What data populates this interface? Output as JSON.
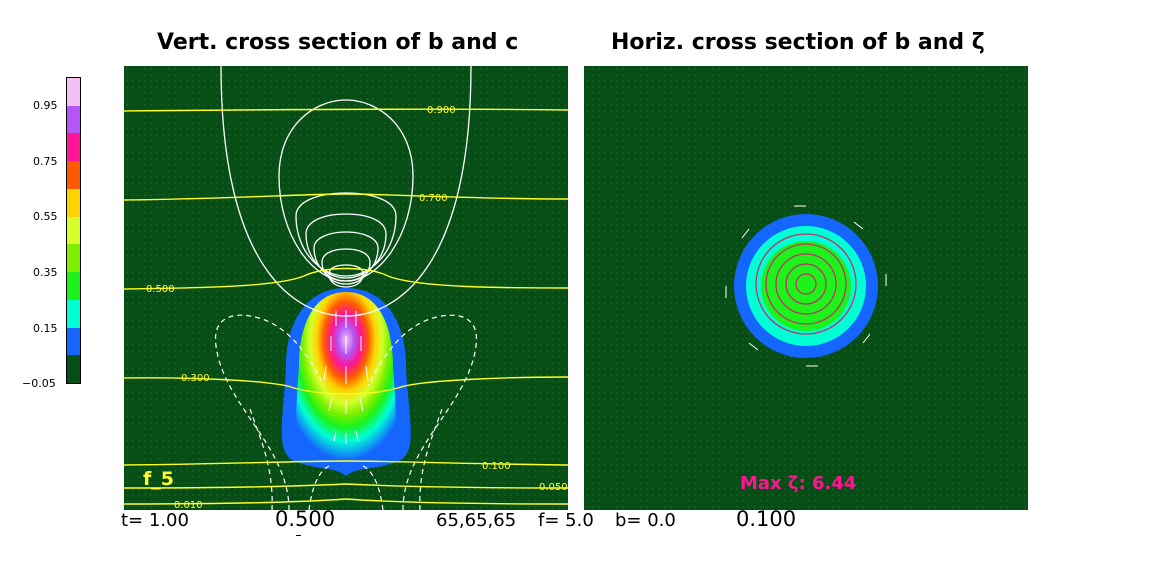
{
  "titles": {
    "left": "Vert. cross section of b and c",
    "right": "Horiz. cross section of b and ζ"
  },
  "colorbar": {
    "ticks": [
      "0.95",
      "0.75",
      "0.55",
      "0.35",
      "0.15",
      "−0.05"
    ],
    "colors": [
      "#f4c0f4",
      "#b455f5",
      "#ff1493",
      "#ff5a00",
      "#ffd300",
      "#d6ff2b",
      "#7ef000",
      "#1df21a",
      "#00ffd5",
      "#1466ff",
      "#074d16"
    ]
  },
  "left_panel": {
    "label": "f_5",
    "contour_labels": [
      "0.900",
      "0.700",
      "0.500",
      "0.300",
      "0.100",
      "0.050",
      "0.010"
    ]
  },
  "right_panel": {
    "max_label": "Max ζ: 6.44"
  },
  "footer": {
    "time": "t= 1.00",
    "left_value": "0.500",
    "grid": "65,65,65",
    "f": "f= 5.0",
    "b": "b= 0.0",
    "right_value": "0.100"
  },
  "colors": {
    "background": "#074d16",
    "contour_yellow": "#ffff2a",
    "contour_white": "#ffffff",
    "max_label": "#ff1493"
  },
  "chart_data": [
    {
      "type": "heatmap",
      "title": "Vert. cross section of b and c",
      "colorbar_range": [
        -0.05,
        1.05
      ],
      "colorbar_ticks": [
        0.95,
        0.75,
        0.55,
        0.35,
        0.15,
        -0.05
      ],
      "contour_levels": [
        0.9,
        0.7,
        0.5,
        0.3,
        0.1,
        0.05,
        0.01
      ]
    },
    {
      "type": "heatmap",
      "title": "Horiz. cross section of b and ζ",
      "max_zeta": 6.44
    }
  ]
}
